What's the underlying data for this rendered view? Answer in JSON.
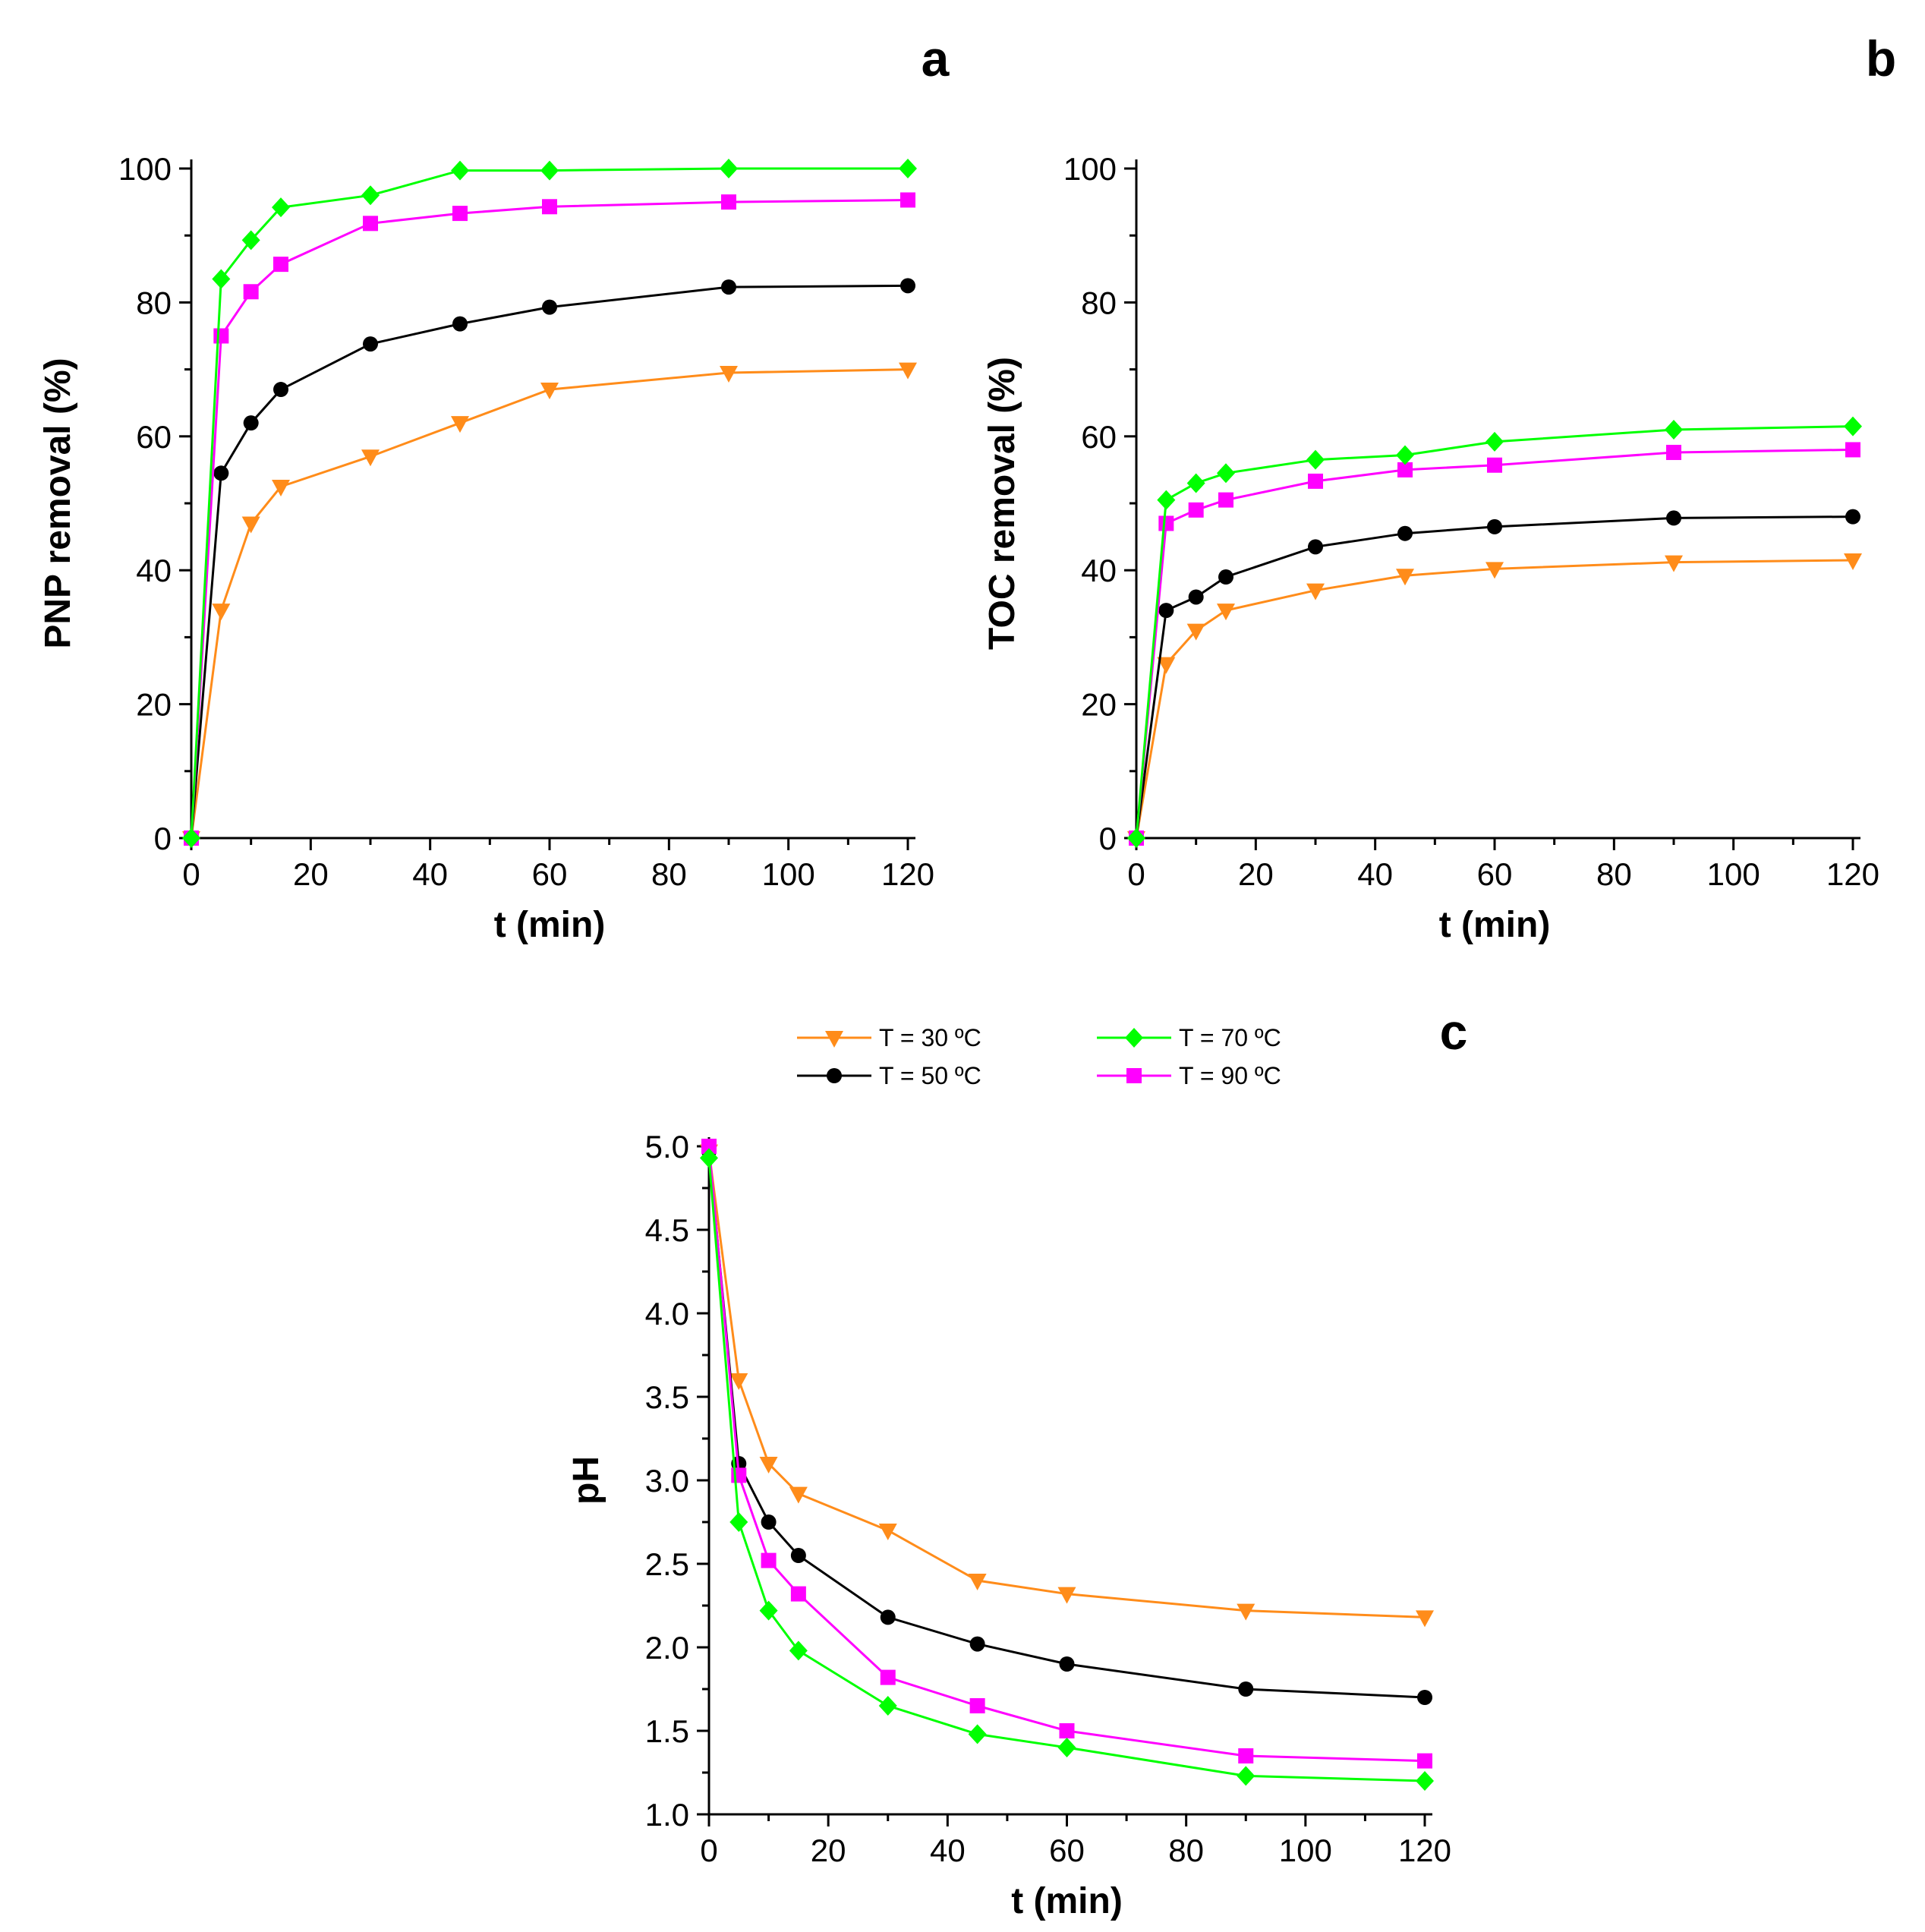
{
  "colors": {
    "t30": "#ff8c1a",
    "t50": "#000000",
    "t70": "#00ff00",
    "t90": "#ff00ff"
  },
  "legend": {
    "items": [
      {
        "key": "t30",
        "label": "T = 30 ºC",
        "marker": "triangle-down"
      },
      {
        "key": "t50",
        "label": "T = 50 ºC",
        "marker": "circle"
      },
      {
        "key": "t70",
        "label": "T = 70 ºC",
        "marker": "diamond"
      },
      {
        "key": "t90",
        "label": "T = 90 ºC",
        "marker": "square"
      }
    ]
  },
  "chart_data": [
    {
      "id": "a",
      "panel_label": "a",
      "type": "line",
      "xlabel": "t (min)",
      "ylabel": "PNP removal (%)",
      "xlim": [
        0,
        120
      ],
      "ylim": [
        0,
        100
      ],
      "xticks": [
        0,
        20,
        40,
        60,
        80,
        100,
        120
      ],
      "yticks": [
        0,
        20,
        40,
        60,
        80,
        100
      ],
      "ytick_labels": [
        "0",
        "20",
        "40",
        "60",
        "80",
        "100"
      ],
      "x": [
        0,
        5,
        10,
        15,
        30,
        45,
        60,
        90,
        120
      ],
      "series": [
        {
          "key": "t30",
          "name": "T = 30 ºC",
          "values": [
            0,
            34,
            47,
            52.5,
            57,
            62,
            67,
            69.5,
            70
          ]
        },
        {
          "key": "t50",
          "name": "T = 50 ºC",
          "values": [
            0,
            54.5,
            62,
            67,
            73.8,
            76.8,
            79.3,
            82.3,
            82.5
          ]
        },
        {
          "key": "t90",
          "name": "T = 90 ºC",
          "values": [
            0,
            75,
            81.6,
            85.7,
            91.8,
            93.3,
            94.3,
            95,
            95.3
          ]
        },
        {
          "key": "t70",
          "name": "T = 70 ºC",
          "values": [
            0,
            83.5,
            89.3,
            94.2,
            96,
            99.7,
            99.7,
            100,
            100
          ]
        }
      ]
    },
    {
      "id": "b",
      "panel_label": "b",
      "type": "line",
      "xlabel": "t (min)",
      "ylabel": "TOC removal (%)",
      "xlim": [
        0,
        120
      ],
      "ylim": [
        0,
        100
      ],
      "xticks": [
        0,
        20,
        40,
        60,
        80,
        100,
        120
      ],
      "yticks": [
        0,
        20,
        40,
        60,
        80,
        100
      ],
      "ytick_labels": [
        "0",
        "20",
        "40",
        "60",
        "80",
        "100"
      ],
      "x": [
        0,
        5,
        10,
        15,
        30,
        45,
        60,
        90,
        120
      ],
      "series": [
        {
          "key": "t30",
          "name": "T = 30 ºC",
          "values": [
            0,
            26,
            31,
            34,
            37,
            39.2,
            40.2,
            41.2,
            41.5
          ]
        },
        {
          "key": "t50",
          "name": "T = 50 ºC",
          "values": [
            0,
            34,
            36,
            39,
            43.5,
            45.5,
            46.5,
            47.8,
            48
          ]
        },
        {
          "key": "t90",
          "name": "T = 90 ºC",
          "values": [
            0,
            47,
            49,
            50.5,
            53.3,
            55,
            55.7,
            57.6,
            58
          ]
        },
        {
          "key": "t70",
          "name": "T = 70 ºC",
          "values": [
            0,
            50.5,
            53,
            54.5,
            56.5,
            57.2,
            59.2,
            61,
            61.5
          ]
        }
      ]
    },
    {
      "id": "c",
      "panel_label": "c",
      "type": "line",
      "xlabel": "t (min)",
      "ylabel": "pH",
      "xlim": [
        0,
        120
      ],
      "ylim": [
        1.0,
        5.0
      ],
      "xticks": [
        0,
        20,
        40,
        60,
        80,
        100,
        120
      ],
      "yticks": [
        1.0,
        1.5,
        2.0,
        2.5,
        3.0,
        3.5,
        4.0,
        4.5,
        5.0
      ],
      "ytick_labels": [
        "1.0",
        "1.5",
        "2.0",
        "2.5",
        "3.0",
        "3.5",
        "4.0",
        "4.5",
        "5.0"
      ],
      "x": [
        0,
        5,
        10,
        15,
        30,
        45,
        60,
        90,
        120
      ],
      "series": [
        {
          "key": "t30",
          "name": "T = 30 ºC",
          "values": [
            4.97,
            3.6,
            3.1,
            2.92,
            2.7,
            2.4,
            2.32,
            2.22,
            2.18
          ]
        },
        {
          "key": "t50",
          "name": "T = 50 ºC",
          "values": [
            4.97,
            3.1,
            2.75,
            2.55,
            2.18,
            2.02,
            1.9,
            1.75,
            1.7
          ]
        },
        {
          "key": "t90",
          "name": "T = 90 ºC",
          "values": [
            5.0,
            3.03,
            2.52,
            2.32,
            1.82,
            1.65,
            1.5,
            1.35,
            1.32
          ]
        },
        {
          "key": "t70",
          "name": "T = 70 ºC",
          "values": [
            4.93,
            2.75,
            2.22,
            1.98,
            1.65,
            1.48,
            1.4,
            1.23,
            1.2
          ]
        }
      ]
    }
  ]
}
